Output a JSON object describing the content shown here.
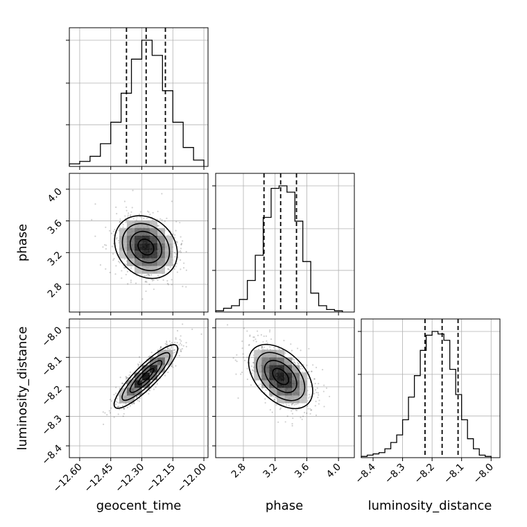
{
  "chart_data": {
    "type": "corner",
    "parameters": [
      "geocent_time",
      "phase",
      "luminosity_distance"
    ],
    "grid": true,
    "colors": {
      "line": "#000000",
      "grid": "#b0b0b0"
    },
    "params": {
      "geocent_time": {
        "label": "geocent_time",
        "range": [
          -12.65,
          -11.98
        ],
        "ticks": [
          -12.6,
          -12.45,
          -12.3,
          -12.15,
          -12.0
        ],
        "tick_labels": [
          "−12.60",
          "−12.45",
          "−12.30",
          "−12.15",
          "−12.00"
        ],
        "quantiles": [
          -12.374,
          -12.279,
          -12.186
        ],
        "hist_bins": [
          -12.65,
          -12.6,
          -12.55,
          -12.5,
          -12.45,
          -12.4,
          -12.35,
          -12.3,
          -12.25,
          -12.2,
          -12.15,
          -12.1,
          -12.05,
          -12.0
        ],
        "hist": [
          0.02,
          0.04,
          0.08,
          0.18,
          0.35,
          0.58,
          0.85,
          1.0,
          0.88,
          0.6,
          0.35,
          0.15,
          0.05
        ]
      },
      "phase": {
        "label": "phase",
        "range": [
          2.45,
          4.2
        ],
        "ticks": [
          2.8,
          3.2,
          3.6,
          4.0
        ],
        "tick_labels": [
          "2.8",
          "3.2",
          "3.6",
          "4.0"
        ],
        "quantiles": [
          3.06,
          3.27,
          3.47
        ],
        "hist_bins": [
          2.45,
          2.55,
          2.65,
          2.75,
          2.85,
          2.95,
          3.05,
          3.15,
          3.25,
          3.35,
          3.45,
          3.55,
          3.65,
          3.75,
          3.85,
          3.95,
          4.05
        ],
        "hist": [
          0.01,
          0.03,
          0.05,
          0.1,
          0.25,
          0.45,
          0.75,
          0.98,
          1.0,
          0.95,
          0.72,
          0.4,
          0.15,
          0.05,
          0.02,
          0.01
        ]
      },
      "luminosity_distance": {
        "label": "luminosity_distance",
        "range": [
          -8.44,
          -7.97
        ],
        "ticks": [
          -8.4,
          -8.3,
          -8.2,
          -8.1,
          -8.0
        ],
        "tick_labels": [
          "−8.4",
          "−8.3",
          "−8.2",
          "−8.1",
          "−8.0"
        ],
        "quantiles": [
          -8.224,
          -8.166,
          -8.112
        ],
        "hist_bins": [
          -8.44,
          -8.42,
          -8.4,
          -8.38,
          -8.36,
          -8.34,
          -8.32,
          -8.3,
          -8.28,
          -8.26,
          -8.24,
          -8.22,
          -8.2,
          -8.18,
          -8.16,
          -8.14,
          -8.12,
          -8.1,
          -8.08,
          -8.06,
          -8.04,
          -8.02,
          -8.0
        ],
        "hist": [
          0.01,
          0.02,
          0.03,
          0.04,
          0.07,
          0.12,
          0.18,
          0.3,
          0.48,
          0.65,
          0.85,
          0.97,
          1.0,
          0.98,
          0.93,
          0.7,
          0.5,
          0.3,
          0.15,
          0.07,
          0.02,
          0.01
        ]
      }
    },
    "pairs": [
      {
        "x": "geocent_time",
        "y": "phase",
        "center": [
          -12.28,
          3.27
        ],
        "sd": [
          0.075,
          0.2
        ],
        "corr": -0.2
      },
      {
        "x": "geocent_time",
        "y": "luminosity_distance",
        "center": [
          -12.28,
          -8.165
        ],
        "sd": [
          0.075,
          0.055
        ],
        "corr": 0.88
      },
      {
        "x": "phase",
        "y": "luminosity_distance",
        "center": [
          3.27,
          -8.165
        ],
        "sd": [
          0.2,
          0.055
        ],
        "corr": -0.45
      }
    ],
    "contour_levels": [
      0.5,
      1.0,
      1.5,
      2.0
    ]
  }
}
